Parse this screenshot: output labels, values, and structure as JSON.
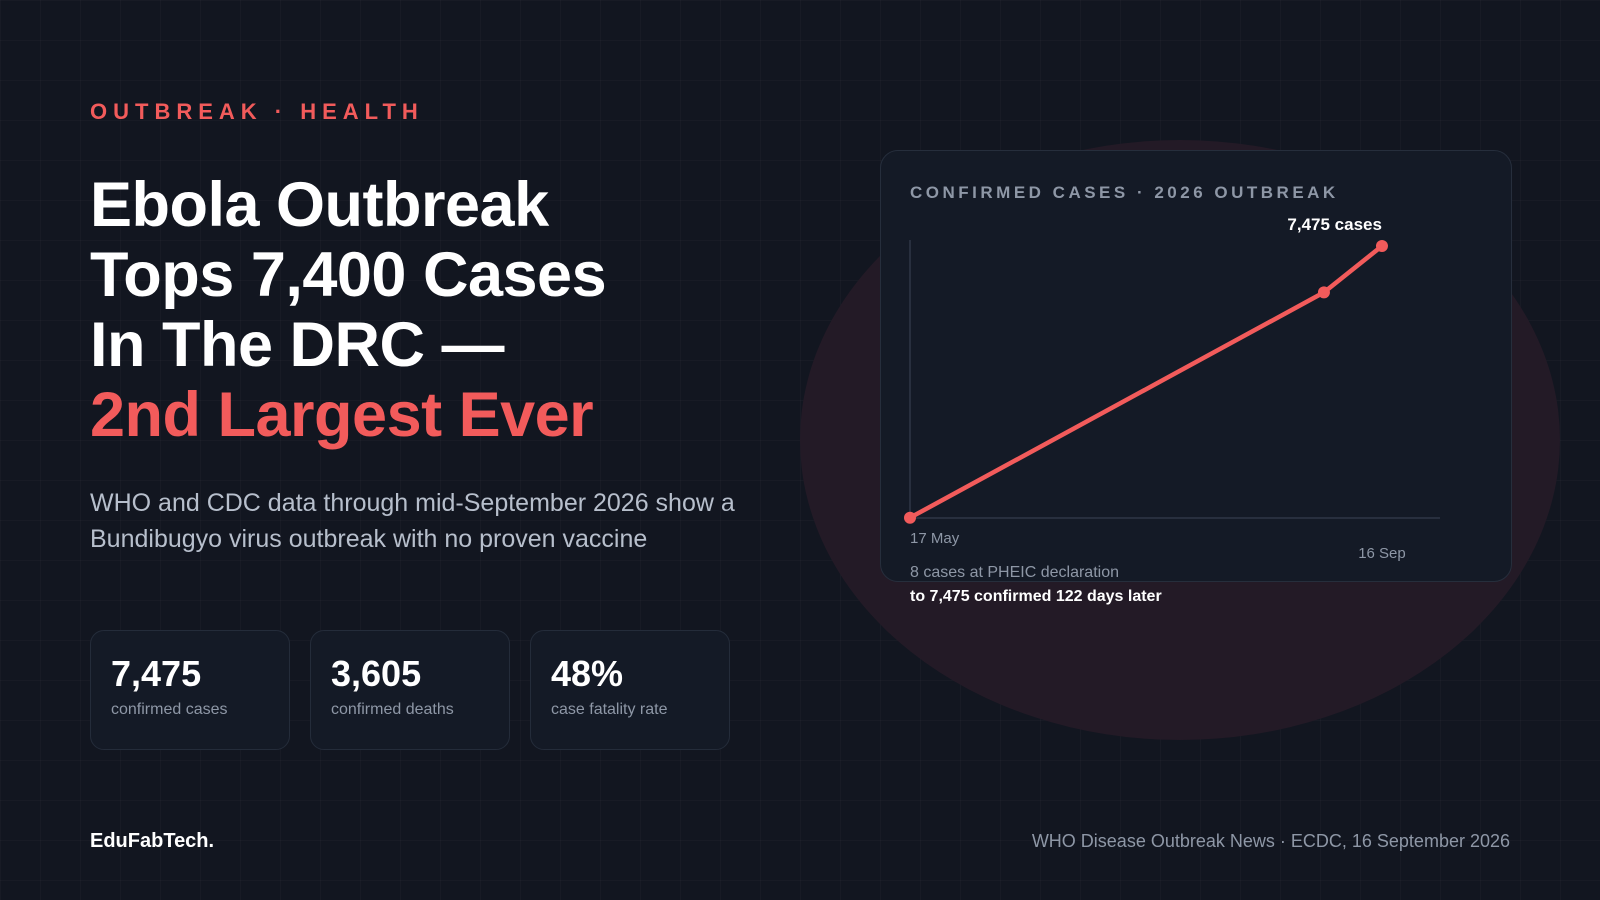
{
  "kicker": "OUTBREAK · HEALTH",
  "headline": {
    "line1": "Ebola Outbreak",
    "line2": "Tops 7,400 Cases",
    "line3": "In The DRC —",
    "accent_line": "2nd Largest Ever"
  },
  "subtitle": "WHO and CDC data through mid-September 2026 show a Bundibugyo virus outbreak with no proven vaccine",
  "stats": [
    {
      "value": "7,475",
      "label": "confirmed cases"
    },
    {
      "value": "3,605",
      "label": "confirmed deaths"
    },
    {
      "value": "48%",
      "label": "case fatality rate"
    }
  ],
  "chart_panel": {
    "caption_line1": "8 cases at PHEIC declaration",
    "caption_line2": "to 7,475 confirmed 122 days later"
  },
  "chart_data": {
    "type": "line",
    "title": "CONFIRMED CASES · 2026 OUTBREAK",
    "series": [
      {
        "values": [
          {
            "x": "2026-05-17",
            "y": 8
          },
          {
            "x": "2026-09-01",
            "y": 6200
          },
          {
            "x": "2026-09-16",
            "y": 7475
          }
        ]
      }
    ],
    "tick_labels": [
      {
        "x": "2026-05-17",
        "label": "17 May"
      },
      {
        "x": "2026-09-16",
        "label": "16 Sep"
      }
    ],
    "annotations": [
      {
        "x": "2026-09-16",
        "text": "7,475 cases"
      }
    ],
    "xlim": [
      "2026-05-17",
      "2026-10-01"
    ],
    "ylim": [
      0,
      7475
    ],
    "grid": false,
    "color": "#f25b5b"
  },
  "footer": {
    "brand": "EduFabTech.",
    "source": "WHO Disease Outbreak News · ECDC, 16 September 2026"
  },
  "colors": {
    "accent": "#f25b5b",
    "background": "#121620",
    "card": "#141a26",
    "muted_text": "#8e97a6"
  }
}
